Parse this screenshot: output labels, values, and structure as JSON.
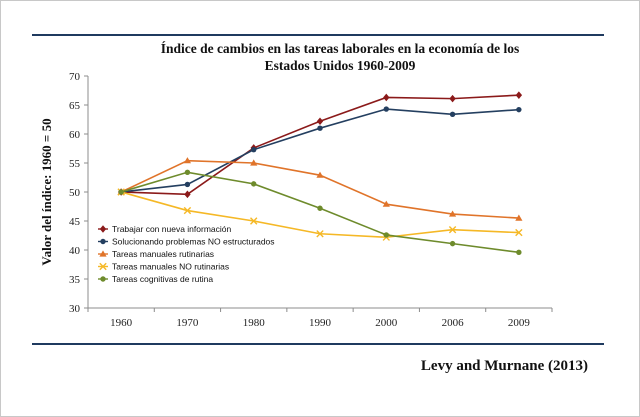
{
  "chart_data": {
    "type": "line",
    "title_line1": "Índice de cambios en las tareas laborales en la economía de los",
    "title_line2": "Estados Unidos 1960-2009",
    "ylabel": "Valor del índice: 1960 = 50",
    "xlabel": "",
    "categories": [
      "1960",
      "1970",
      "1980",
      "1990",
      "2000",
      "2006",
      "2009"
    ],
    "ylim": [
      30,
      70
    ],
    "yticks": [
      30,
      35,
      40,
      45,
      50,
      55,
      60,
      65,
      70
    ],
    "grid": false,
    "legend_position": "bottom-left",
    "series": [
      {
        "name": "Trabajar con nueva información",
        "color": "#8b1a1a",
        "marker": "diamond",
        "values": [
          50,
          49.6,
          57.6,
          62.2,
          66.3,
          66.1,
          66.7
        ]
      },
      {
        "name": "Solucionando problemas NO estructurados",
        "color": "#243f60",
        "marker": "circle",
        "values": [
          50,
          51.3,
          57.3,
          61.0,
          64.3,
          63.4,
          64.2
        ]
      },
      {
        "name": "Tareas manuales rutinarias",
        "color": "#e0742a",
        "marker": "triangle",
        "values": [
          50,
          55.4,
          55.0,
          52.9,
          47.9,
          46.2,
          45.5
        ]
      },
      {
        "name": "Tareas manuales NO rutinarias",
        "color": "#f5b826",
        "marker": "x",
        "values": [
          50,
          46.8,
          45.0,
          42.8,
          42.2,
          43.5,
          43.0
        ]
      },
      {
        "name": "Tareas cognitivas de rutina",
        "color": "#6e8b2c",
        "marker": "circle",
        "values": [
          50,
          53.4,
          51.4,
          47.2,
          42.6,
          41.1,
          39.6
        ]
      }
    ]
  },
  "citation": "Levy and Murnane (2013)"
}
